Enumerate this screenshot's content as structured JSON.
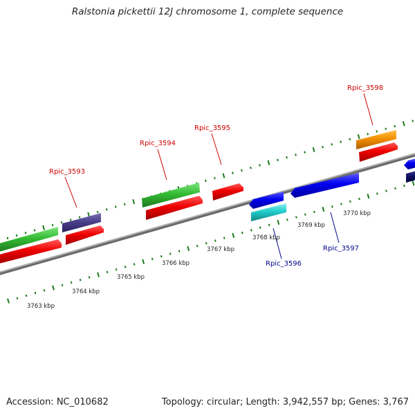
{
  "title": "Ralstonia pickettii 12J chromosome 1, complete sequence",
  "footer": {
    "accession": "Accession: NC_010682",
    "topology": "Topology: circular; Length: 3,942,557 bp; Genes: 3,767"
  },
  "colors": {
    "backbone": "#8a8a8a",
    "tick": "#1a7a1a",
    "label_forward": "#cc0000",
    "label_reverse": "#00008b"
  },
  "scale_labels": [
    {
      "kbp": 3763,
      "text": "3763 kbp"
    },
    {
      "kbp": 3764,
      "text": "3764 kbp"
    },
    {
      "kbp": 3765,
      "text": "3765 kbp"
    },
    {
      "kbp": 3766,
      "text": "3766 kbp"
    },
    {
      "kbp": 3767,
      "text": "3767 kbp"
    },
    {
      "kbp": 3768,
      "text": "3768 kbp"
    },
    {
      "kbp": 3769,
      "text": "3769 kbp"
    },
    {
      "kbp": 3770,
      "text": "3770 kbp"
    }
  ],
  "gene_labels": [
    {
      "text": "Rpic_3593",
      "strand": "forward"
    },
    {
      "text": "Rpic_3594",
      "strand": "forward"
    },
    {
      "text": "Rpic_3595",
      "strand": "forward"
    },
    {
      "text": "Rpic_3598",
      "strand": "forward"
    },
    {
      "text": "Rpic_3596",
      "strand": "reverse"
    },
    {
      "text": "Rpic_3597",
      "strand": "reverse"
    }
  ]
}
